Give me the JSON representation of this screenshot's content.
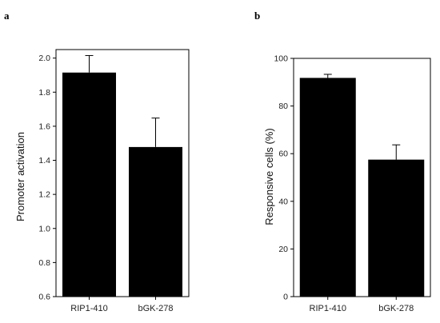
{
  "chart_data": [
    {
      "type": "bar",
      "panel_label": "a",
      "categories": [
        "RIP1-410",
        "bGK-278"
      ],
      "values": [
        1.915,
        1.478
      ],
      "error": [
        0.1,
        0.17
      ],
      "title": "",
      "xlabel": "",
      "ylabel": "Promoter activation",
      "ylim": [
        0.6,
        2.05
      ],
      "yticks": [
        "0.6",
        "0.8",
        "1.0",
        "1.2",
        "1.4",
        "1.6",
        "1.8",
        "2.0"
      ],
      "bar_color": "#000000",
      "grid": false
    },
    {
      "type": "bar",
      "panel_label": "b",
      "categories": [
        "RIP1-410",
        "bGK-278"
      ],
      "values": [
        91.8,
        57.5
      ],
      "error": [
        1.5,
        6.2
      ],
      "title": "",
      "xlabel": "",
      "ylabel": "Responsive cells (%)",
      "ylim": [
        0,
        100
      ],
      "yticks": [
        "0",
        "20",
        "40",
        "60",
        "80",
        "100"
      ],
      "bar_color": "#000000",
      "grid": false
    }
  ]
}
